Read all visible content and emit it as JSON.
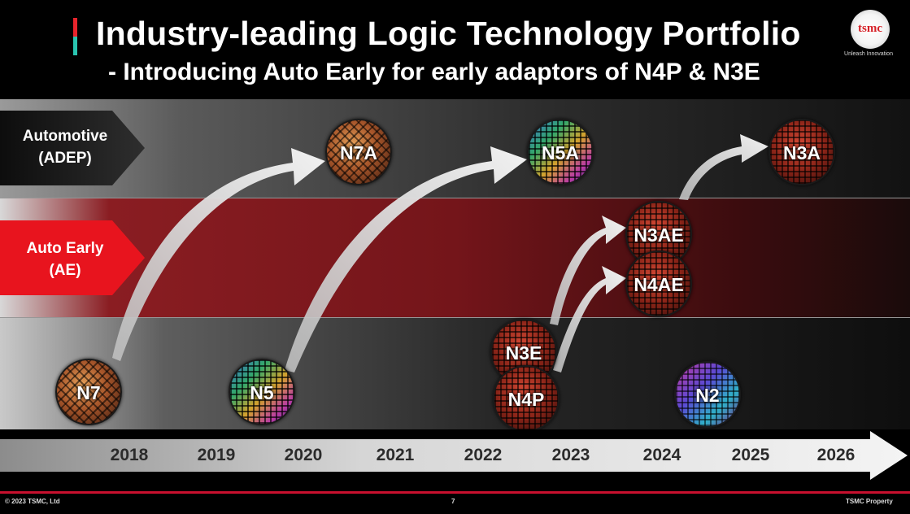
{
  "header": {
    "title": "Industry-leading Logic Technology Portfolio",
    "subtitle": "- Introducing Auto Early for early adaptors of N4P & N3E",
    "logo_text": "tsmc",
    "logo_tagline": "Unleash Innovation"
  },
  "rows": {
    "automotive": {
      "line1": "Automotive",
      "line2": "(ADEP)"
    },
    "auto_early": {
      "line1": "Auto Early",
      "line2": "(AE)"
    }
  },
  "wafers": {
    "n7": "N7",
    "n7a": "N7A",
    "n5": "N5",
    "n5a": "N5A",
    "n3e": "N3E",
    "n4p": "N4P",
    "n3ae": "N3AE",
    "n4ae": "N4AE",
    "n3a": "N3A",
    "n2": "N2"
  },
  "timeline": {
    "years": [
      "2018",
      "2019",
      "2020",
      "2021",
      "2022",
      "2023",
      "2024",
      "2025",
      "2026"
    ]
  },
  "footer": {
    "copyright": "© 2023 TSMC, Ltd",
    "page": "7",
    "property": "TSMC Property"
  },
  "colors": {
    "accent_red": "#c8102e",
    "tag_red": "#e8141e",
    "tag_dark": "#1c1c1c"
  }
}
